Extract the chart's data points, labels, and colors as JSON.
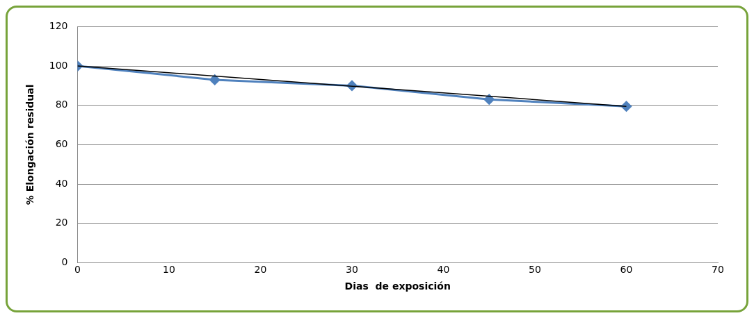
{
  "chart_data": {
    "type": "line",
    "xlabel": "Dias  de exposición",
    "ylabel": "% Elongación residual",
    "x": [
      0,
      15,
      30,
      45,
      60
    ],
    "series": [
      {
        "color": "#4f81bd",
        "values": [
          100,
          93,
          90,
          83,
          79.5
        ],
        "marker": "diamond"
      },
      {
        "type": "line",
        "color": "#000000",
        "x": [
          0,
          60
        ],
        "values": [
          100,
          79.5
        ],
        "marker": "none"
      }
    ],
    "xlim": [
      0,
      70
    ],
    "xticks": [
      0,
      10,
      20,
      30,
      40,
      50,
      60,
      70
    ],
    "ylim": [
      0,
      120
    ],
    "yticks": [
      0,
      20,
      40,
      60,
      80,
      100,
      120
    ],
    "grid": "y",
    "legend": false
  }
}
